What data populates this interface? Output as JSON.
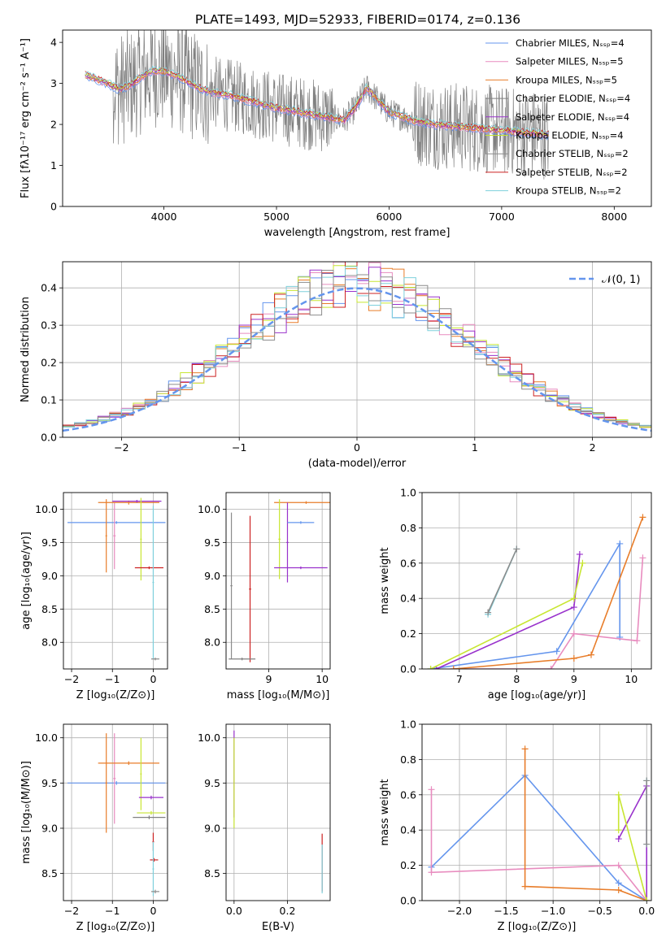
{
  "figure": {
    "title": "PLATE=1493, MJD=52933, FIBERID=0174, z=0.136",
    "colors": {
      "chabrier_miles": "#6495ed",
      "salpeter_miles": "#e88cbf",
      "kroupa_miles": "#e87d2a",
      "chabrier_elodie": "#808080",
      "salpeter_elodie": "#9932cc",
      "kroupa_elodie": "#c8e632",
      "chabrier_stelib": "#8c8c8c",
      "salpeter_stelib": "#cc2222",
      "kroupa_stelib": "#7ed0dc",
      "normal_curve": "#6495ed",
      "grid": "#b0b0b0"
    }
  },
  "chart_data": [
    {
      "id": "spectrum",
      "type": "line",
      "xlabel": "wavelength [Angstrom, rest frame]",
      "ylabel": "Flux [fλ10⁻¹⁷ erg cm⁻² s⁻¹ A⁻¹]",
      "xlim": [
        3100,
        8330
      ],
      "ylim": [
        0,
        4.3
      ],
      "xticks": [
        4000,
        5000,
        6000,
        7000,
        8000
      ],
      "yticks": [
        0,
        1,
        2,
        3,
        4
      ],
      "legend_position": "top-right",
      "legend": [
        "Chabrier MILES, Nₛₛₚ=4",
        "Salpeter MILES, Nₛₛₚ=5",
        "Kroupa MILES, Nₛₛₚ=5",
        "Chabrier ELODIE, Nₛₛₚ=4",
        "Salpeter ELODIE, Nₛₛₚ=4",
        "Kroupa ELODIE, Nₛₛₚ=4",
        "Chabrier STELIB, Nₛₛₚ=2",
        "Salpeter STELIB, Nₛₛₚ=2",
        "Kroupa STELIB, Nₛₛₚ=2"
      ],
      "continuum": {
        "x": [
          3300,
          3400,
          3500,
          3600,
          3700,
          3800,
          3900,
          4000,
          4100,
          4200,
          4300,
          4400,
          4600,
          4800,
          5000,
          5200,
          5400,
          5600,
          5700,
          5800,
          6000,
          6200,
          6400,
          6600,
          6800,
          7000,
          7200,
          7400
        ],
        "y": [
          3.2,
          3.1,
          3.0,
          2.85,
          2.95,
          3.15,
          3.3,
          3.3,
          3.2,
          3.05,
          2.9,
          2.8,
          2.7,
          2.55,
          2.4,
          2.3,
          2.2,
          2.1,
          2.4,
          2.9,
          2.3,
          2.1,
          2.0,
          1.95,
          1.9,
          1.85,
          1.8,
          1.75
        ]
      }
    },
    {
      "id": "residuals",
      "type": "line",
      "xlabel": "(data-model)/error",
      "ylabel": "Normed distribution",
      "xlim": [
        -2.5,
        2.5
      ],
      "ylim": [
        0,
        0.47
      ],
      "xticks": [
        -2,
        -1,
        0,
        1,
        2
      ],
      "yticks": [
        0.0,
        0.1,
        0.2,
        0.3,
        0.4
      ],
      "legend_position": "top-right",
      "legend": [
        "𝒩(0, 1)"
      ],
      "normal_curve": {
        "mean": 0,
        "sigma": 1
      }
    },
    {
      "id": "age-vs-Z",
      "type": "scatter",
      "xlabel": "Z [log₁₀(Z/Z⊙)]",
      "ylabel": "age  [log₁₀(age/yr)]",
      "xlim": [
        -2.2,
        0.35
      ],
      "ylim": [
        7.6,
        10.25
      ],
      "xticks": [
        -2,
        -1,
        0
      ],
      "yticks": [
        8.0,
        8.5,
        9.0,
        9.5,
        10.0
      ],
      "points": [
        {
          "model": "chabrier_miles",
          "x": -0.9,
          "y": 9.8,
          "xerr": 1.2,
          "yerr": 0.02
        },
        {
          "model": "salpeter_miles",
          "x": -0.95,
          "y": 9.6,
          "xerr": 0.03,
          "yerr": 0.5
        },
        {
          "model": "kroupa_miles",
          "x": -0.6,
          "y": 10.1,
          "xerr": 0.75,
          "yerr": 0.03
        },
        {
          "model": "kroupa_miles",
          "x": -1.15,
          "y": 9.6,
          "xerr": 0.02,
          "yerr": 0.55
        },
        {
          "model": "salpeter_elodie",
          "x": -0.4,
          "y": 10.12,
          "xerr": 0.6,
          "yerr": 0.02
        },
        {
          "model": "kroupa_elodie",
          "x": -0.3,
          "y": 9.55,
          "xerr": 0.02,
          "yerr": 0.62
        },
        {
          "model": "salpeter_stelib",
          "x": -0.1,
          "y": 9.12,
          "xerr": 0.35,
          "yerr": 0.02
        },
        {
          "model": "kroupa_stelib",
          "x": 0.0,
          "y": 8.9,
          "xerr": 0.02,
          "yerr": 1.15
        },
        {
          "model": "chabrier_stelib",
          "x": 0.05,
          "y": 7.75,
          "xerr": 0.1,
          "yerr": 0.02
        }
      ]
    },
    {
      "id": "age-vs-mass",
      "type": "scatter",
      "xlabel": "mass [log₁₀(M/M⊙)]",
      "ylabel": "",
      "xlim": [
        8.2,
        10.15
      ],
      "ylim": [
        7.6,
        10.25
      ],
      "xticks": [
        9,
        10
      ],
      "yticks": [
        8.0,
        8.5,
        9.0,
        9.5,
        10.0
      ],
      "points": [
        {
          "model": "chabrier_stelib",
          "x": 8.3,
          "y": 8.85,
          "xerr": 0.02,
          "yerr": 1.1
        },
        {
          "model": "salpeter_stelib",
          "x": 8.65,
          "y": 8.8,
          "xerr": 0.02,
          "yerr": 1.1
        },
        {
          "model": "chabrier_elodie",
          "x": 8.5,
          "y": 7.75,
          "xerr": 0.25,
          "yerr": 0.02
        },
        {
          "model": "kroupa_miles",
          "x": 9.7,
          "y": 10.1,
          "xerr": 0.6,
          "yerr": 0.02
        },
        {
          "model": "kroupa_elodie",
          "x": 9.2,
          "y": 9.55,
          "xerr": 0.02,
          "yerr": 0.6
        },
        {
          "model": "salpeter_elodie",
          "x": 9.35,
          "y": 9.5,
          "xerr": 0.02,
          "yerr": 0.6
        },
        {
          "model": "chabrier_miles",
          "x": 9.6,
          "y": 9.8,
          "xerr": 0.25,
          "yerr": 0.02
        },
        {
          "model": "salpeter_elodie",
          "x": 9.6,
          "y": 9.12,
          "xerr": 0.5,
          "yerr": 0.02
        }
      ]
    },
    {
      "id": "weight-vs-age",
      "type": "line",
      "xlabel": "age  [log₁₀(age/yr)]",
      "ylabel": "mass weight",
      "xlim": [
        6.35,
        10.35
      ],
      "ylim": [
        0,
        1.0
      ],
      "xticks": [
        7,
        8,
        9,
        10
      ],
      "yticks": [
        0.0,
        0.2,
        0.4,
        0.6,
        0.8,
        1.0
      ],
      "series": [
        {
          "model": "chabrier_miles",
          "x": [
            6.5,
            8.7,
            9.8,
            9.8
          ],
          "y": [
            0.0,
            0.1,
            0.71,
            0.18
          ]
        },
        {
          "model": "salpeter_miles",
          "x": [
            6.9,
            8.6,
            9.0,
            10.1,
            10.2
          ],
          "y": [
            0.0,
            0.0,
            0.2,
            0.16,
            0.63
          ]
        },
        {
          "model": "kroupa_miles",
          "x": [
            6.9,
            9.0,
            9.3,
            10.2
          ],
          "y": [
            0.0,
            0.06,
            0.08,
            0.86
          ]
        },
        {
          "model": "salpeter_elodie",
          "x": [
            6.6,
            9.0,
            9.1
          ],
          "y": [
            0.0,
            0.35,
            0.65
          ]
        },
        {
          "model": "kroupa_elodie",
          "x": [
            6.5,
            9.0,
            9.15
          ],
          "y": [
            0.0,
            0.4,
            0.6
          ]
        },
        {
          "model": "kroupa_stelib",
          "x": [
            7.5,
            8.0
          ],
          "y": [
            0.31,
            0.68
          ]
        },
        {
          "model": "chabrier_stelib",
          "x": [
            7.5,
            8.0
          ],
          "y": [
            0.32,
            0.68
          ]
        }
      ]
    },
    {
      "id": "mass-vs-Z",
      "type": "scatter",
      "xlabel": "Z [log₁₀(Z/Z⊙)]",
      "ylabel": "mass [log₁₀(M/M⊙)]",
      "xlim": [
        -2.2,
        0.35
      ],
      "ylim": [
        8.2,
        10.15
      ],
      "xticks": [
        -2,
        -1,
        0
      ],
      "yticks": [
        8.5,
        9.0,
        9.5,
        10.0
      ],
      "points": [
        {
          "model": "chabrier_miles",
          "x": -0.9,
          "y": 9.5,
          "xerr": 1.2,
          "yerr": 0.02
        },
        {
          "model": "salpeter_miles",
          "x": -0.95,
          "y": 9.55,
          "xerr": 0.03,
          "yerr": 0.5
        },
        {
          "model": "kroupa_miles",
          "x": -0.6,
          "y": 9.72,
          "xerr": 0.75,
          "yerr": 0.02
        },
        {
          "model": "kroupa_miles",
          "x": -1.15,
          "y": 9.5,
          "xerr": 0.02,
          "yerr": 0.55
        },
        {
          "model": "kroupa_elodie",
          "x": -0.3,
          "y": 9.6,
          "xerr": 0.02,
          "yerr": 0.4
        },
        {
          "model": "salpeter_elodie",
          "x": -0.05,
          "y": 9.34,
          "xerr": 0.3,
          "yerr": 0.02
        },
        {
          "model": "kroupa_elodie",
          "x": -0.05,
          "y": 9.17,
          "xerr": 0.35,
          "yerr": 0.02
        },
        {
          "model": "chabrier_elodie",
          "x": -0.1,
          "y": 9.12,
          "xerr": 0.4,
          "yerr": 0.02
        },
        {
          "model": "salpeter_stelib",
          "x": 0.02,
          "y": 8.65,
          "xerr": 0.1,
          "yerr": 0.02
        },
        {
          "model": "salpeter_stelib",
          "x": 0.0,
          "y": 8.85,
          "xerr": 0.02,
          "yerr": 0.1
        },
        {
          "model": "kroupa_stelib",
          "x": 0.0,
          "y": 8.55,
          "xerr": 0.02,
          "yerr": 0.3
        },
        {
          "model": "chabrier_stelib",
          "x": 0.05,
          "y": 8.3,
          "xerr": 0.1,
          "yerr": 0.02
        }
      ]
    },
    {
      "id": "mass-vs-EBV",
      "type": "scatter",
      "xlabel": "E(B-V)",
      "ylabel": "",
      "xlim": [
        -0.03,
        0.36
      ],
      "ylim": [
        8.2,
        10.15
      ],
      "xticks": [
        0.0,
        0.2
      ],
      "yticks": [
        8.5,
        9.0,
        9.5,
        10.0
      ],
      "points": [
        {
          "model": "salpeter_elodie",
          "x": 0.0,
          "y": 9.6,
          "xerr": 0.0,
          "yerr": 0.48
        },
        {
          "model": "kroupa_elodie",
          "x": 0.0,
          "y": 9.5,
          "xerr": 0.0,
          "yerr": 0.5
        },
        {
          "model": "salpeter_stelib",
          "x": 0.33,
          "y": 8.62,
          "xerr": 0.0,
          "yerr": 0.32
        },
        {
          "model": "kroupa_stelib",
          "x": 0.33,
          "y": 8.55,
          "xerr": 0.0,
          "yerr": 0.27
        }
      ]
    },
    {
      "id": "weight-vs-Z",
      "type": "line",
      "xlabel": "Z [log₁₀(Z/Z⊙)]",
      "ylabel": "mass weight",
      "xlim": [
        -2.4,
        0.05
      ],
      "ylim": [
        0,
        1.0
      ],
      "xticks": [
        -2.0,
        -1.5,
        -1.0,
        -0.5,
        0.0
      ],
      "yticks": [
        0.0,
        0.2,
        0.4,
        0.6,
        0.8,
        1.0
      ],
      "series": [
        {
          "model": "chabrier_miles",
          "x": [
            -2.3,
            -1.3,
            -0.3,
            0.0
          ],
          "y": [
            0.19,
            0.71,
            0.1,
            0.0
          ]
        },
        {
          "model": "salpeter_miles",
          "x": [
            -2.3,
            -2.3,
            -0.3,
            0.0
          ],
          "y": [
            0.63,
            0.16,
            0.2,
            0.0
          ]
        },
        {
          "model": "kroupa_miles",
          "x": [
            -1.3,
            -1.3,
            -0.3,
            0.0
          ],
          "y": [
            0.86,
            0.08,
            0.06,
            0.0
          ]
        },
        {
          "model": "salpeter_elodie",
          "x": [
            -0.3,
            0.0,
            0.0
          ],
          "y": [
            0.35,
            0.65,
            0.0
          ]
        },
        {
          "model": "kroupa_elodie",
          "x": [
            -0.3,
            -0.3,
            0.0
          ],
          "y": [
            0.4,
            0.6,
            0.0
          ]
        },
        {
          "model": "kroupa_stelib",
          "x": [
            0.0,
            0.0
          ],
          "y": [
            0.32,
            0.68
          ]
        },
        {
          "model": "chabrier_stelib",
          "x": [
            0.0,
            0.0
          ],
          "y": [
            0.32,
            0.68
          ]
        }
      ]
    }
  ]
}
